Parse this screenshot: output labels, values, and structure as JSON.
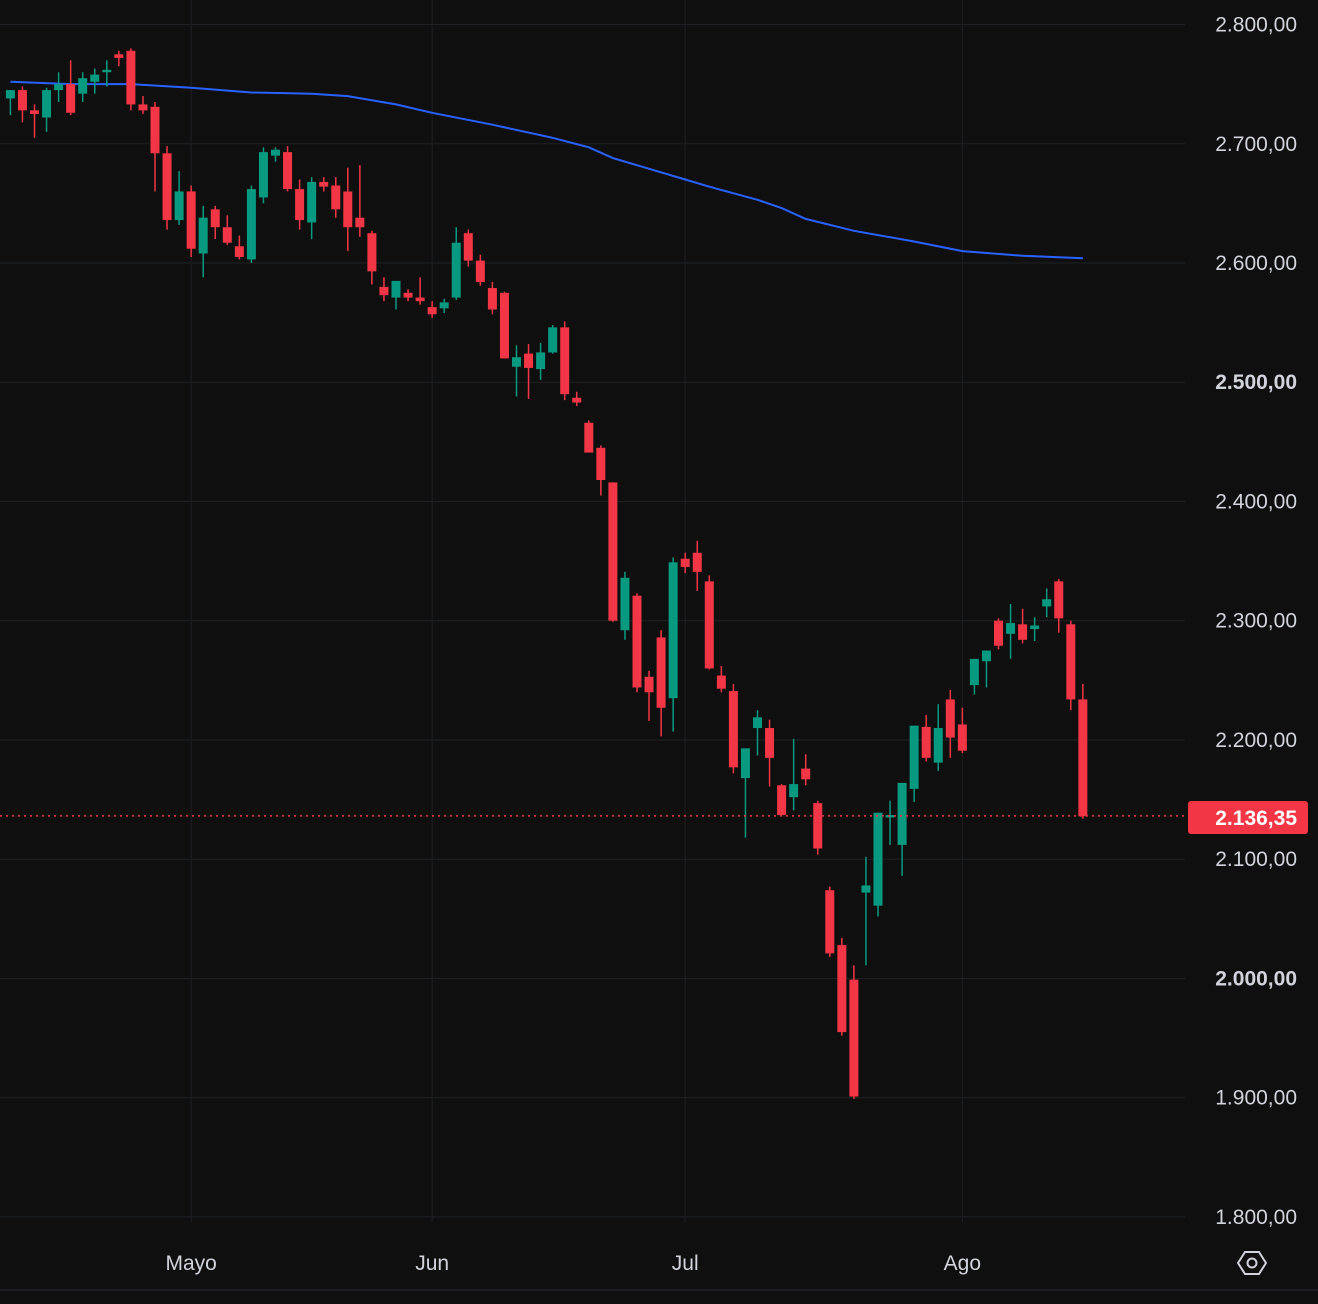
{
  "chart_data": {
    "type": "candlestick",
    "y_ticks": [
      "2.800,00",
      "2.700,00",
      "2.600,00",
      "2.500,00",
      "2.400,00",
      "2.300,00",
      "2.200,00",
      "2.100,00",
      "2.000,00",
      "1.900,00",
      "1.800,00"
    ],
    "y_tick_values": [
      2800,
      2700,
      2600,
      2500,
      2400,
      2300,
      2200,
      2100,
      2000,
      1900,
      1800
    ],
    "y_tick_bold": [
      false,
      false,
      false,
      true,
      false,
      false,
      false,
      false,
      true,
      false,
      false
    ],
    "ylim": [
      1790,
      2820
    ],
    "x_labels": [
      "Mayo",
      "Jun",
      "Jul",
      "Ago"
    ],
    "x_label_index": [
      15,
      35,
      56,
      79
    ],
    "last_price": 2136.35,
    "last_price_label": "2.136,35",
    "colors": {
      "up": "#089981",
      "down": "#f23645",
      "ma": "#2962ff",
      "grid": "#1f2023",
      "text": "#d1d4dc",
      "background": "#0f0f0f"
    },
    "candles": [
      [
        2738,
        2745,
        2724,
        2745
      ],
      [
        2745,
        2748,
        2718,
        2728
      ],
      [
        2728,
        2733,
        2705,
        2725
      ],
      [
        2722,
        2747,
        2710,
        2745
      ],
      [
        2745,
        2760,
        2735,
        2750
      ],
      [
        2750,
        2770,
        2724,
        2726
      ],
      [
        2742,
        2760,
        2735,
        2755
      ],
      [
        2752,
        2763,
        2742,
        2758
      ],
      [
        2760,
        2770,
        2748,
        2762
      ],
      [
        2775,
        2778,
        2765,
        2772
      ],
      [
        2778,
        2780,
        2728,
        2733
      ],
      [
        2733,
        2740,
        2725,
        2728
      ],
      [
        2731,
        2735,
        2660,
        2692
      ],
      [
        2692,
        2698,
        2628,
        2636
      ],
      [
        2636,
        2677,
        2632,
        2660
      ],
      [
        2660,
        2665,
        2605,
        2612
      ],
      [
        2608,
        2648,
        2588,
        2638
      ],
      [
        2645,
        2648,
        2620,
        2630
      ],
      [
        2630,
        2640,
        2615,
        2617
      ],
      [
        2614,
        2623,
        2603,
        2605
      ],
      [
        2603,
        2665,
        2600,
        2662
      ],
      [
        2655,
        2697,
        2650,
        2693
      ],
      [
        2690,
        2697,
        2685,
        2695
      ],
      [
        2693,
        2698,
        2660,
        2662
      ],
      [
        2662,
        2670,
        2628,
        2636
      ],
      [
        2634,
        2672,
        2620,
        2668
      ],
      [
        2668,
        2672,
        2660,
        2664
      ],
      [
        2665,
        2672,
        2638,
        2645
      ],
      [
        2660,
        2680,
        2610,
        2630
      ],
      [
        2638,
        2682,
        2622,
        2630
      ],
      [
        2625,
        2627,
        2582,
        2593
      ],
      [
        2580,
        2588,
        2568,
        2573
      ],
      [
        2571,
        2584,
        2561,
        2585
      ],
      [
        2575,
        2578,
        2568,
        2571
      ],
      [
        2571,
        2588,
        2565,
        2568
      ],
      [
        2563,
        2568,
        2554,
        2557
      ],
      [
        2562,
        2570,
        2558,
        2567
      ],
      [
        2571,
        2630,
        2569,
        2617
      ],
      [
        2625,
        2628,
        2597,
        2602
      ],
      [
        2602,
        2607,
        2581,
        2584
      ],
      [
        2579,
        2584,
        2557,
        2561
      ],
      [
        2575,
        2576,
        2520,
        2520
      ],
      [
        2513,
        2531,
        2488,
        2521
      ],
      [
        2524,
        2532,
        2486,
        2512
      ],
      [
        2511,
        2533,
        2502,
        2525
      ],
      [
        2525,
        2548,
        2524,
        2546
      ],
      [
        2546,
        2551,
        2485,
        2490
      ],
      [
        2487,
        2492,
        2480,
        2483
      ],
      [
        2466,
        2468,
        2442,
        2441
      ],
      [
        2445,
        2447,
        2405,
        2418
      ],
      [
        2416,
        2416,
        2299,
        2300
      ],
      [
        2292,
        2341,
        2284,
        2336
      ],
      [
        2321,
        2323,
        2240,
        2244
      ],
      [
        2253,
        2258,
        2216,
        2240
      ],
      [
        2286,
        2292,
        2203,
        2227
      ],
      [
        2235,
        2353,
        2207,
        2349
      ],
      [
        2352,
        2357,
        2340,
        2345
      ],
      [
        2357,
        2367,
        2325,
        2341
      ],
      [
        2333,
        2338,
        2259,
        2260
      ],
      [
        2254,
        2262,
        2240,
        2243
      ],
      [
        2241,
        2247,
        2172,
        2177
      ],
      [
        2168,
        2190,
        2118,
        2193
      ],
      [
        2210,
        2225,
        2187,
        2219
      ],
      [
        2210,
        2217,
        2161,
        2185
      ],
      [
        2162,
        2163,
        2139,
        2137
      ],
      [
        2152,
        2201,
        2141,
        2163
      ],
      [
        2176,
        2188,
        2162,
        2167
      ],
      [
        2147,
        2149,
        2104,
        2109
      ],
      [
        2074,
        2077,
        2018,
        2021
      ],
      [
        2028,
        2034,
        1952,
        1955
      ],
      [
        1999,
        2011,
        1899,
        1901
      ],
      [
        2072,
        2102,
        2011,
        2078
      ],
      [
        2061,
        2137,
        2052,
        2139
      ],
      [
        2135,
        2149,
        2112,
        2137
      ],
      [
        2112,
        2161,
        2086,
        2164
      ],
      [
        2159,
        2206,
        2148,
        2212
      ],
      [
        2211,
        2221,
        2182,
        2185
      ],
      [
        2181,
        2230,
        2174,
        2210
      ],
      [
        2234,
        2242,
        2185,
        2202
      ],
      [
        2213,
        2227,
        2189,
        2191
      ],
      [
        2246,
        2262,
        2238,
        2268
      ],
      [
        2266,
        2275,
        2244,
        2275
      ],
      [
        2300,
        2302,
        2276,
        2279
      ],
      [
        2289,
        2314,
        2268,
        2298
      ],
      [
        2297,
        2310,
        2281,
        2284
      ],
      [
        2293,
        2303,
        2283,
        2296
      ],
      [
        2312,
        2327,
        2303,
        2318
      ],
      [
        2333,
        2335,
        2290,
        2302
      ],
      [
        2297,
        2300,
        2225,
        2234
      ],
      [
        2234,
        2247,
        2134,
        2136
      ]
    ],
    "ma_line": [
      [
        0,
        2752
      ],
      [
        5,
        2750
      ],
      [
        10,
        2750
      ],
      [
        15,
        2747
      ],
      [
        20,
        2743
      ],
      [
        25,
        2742
      ],
      [
        28,
        2740
      ],
      [
        32,
        2733
      ],
      [
        35,
        2726
      ],
      [
        40,
        2716
      ],
      [
        45,
        2705
      ],
      [
        48,
        2697
      ],
      [
        50,
        2688
      ],
      [
        53,
        2679
      ],
      [
        56,
        2670
      ],
      [
        58,
        2664
      ],
      [
        62,
        2653
      ],
      [
        64,
        2646
      ],
      [
        66,
        2637
      ],
      [
        70,
        2627
      ],
      [
        75,
        2618
      ],
      [
        79,
        2610
      ],
      [
        84,
        2606
      ],
      [
        89,
        2604
      ]
    ]
  },
  "icons": {
    "settings": "settings-gear-icon"
  }
}
